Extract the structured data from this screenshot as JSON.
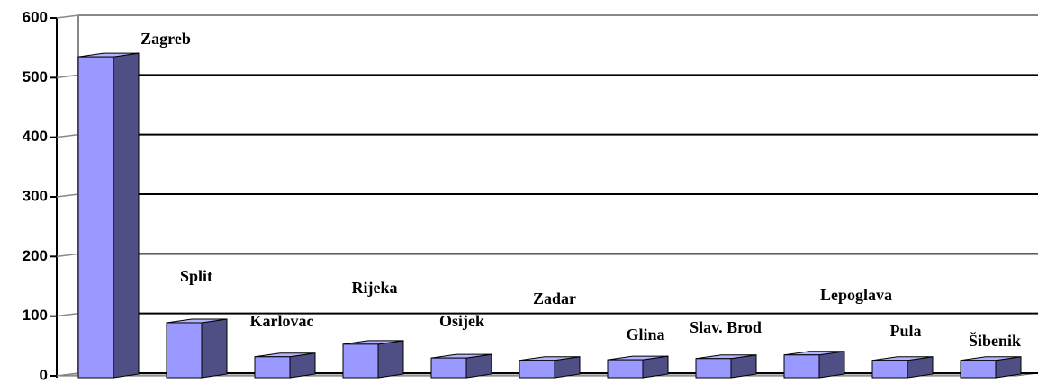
{
  "chart_data": {
    "type": "bar3d",
    "categories": [
      "Zagreb",
      "Split",
      "Karlovac",
      "Rijeka",
      "Osijek",
      "Zadar",
      "Glina",
      "Slav. Brod",
      "Lepoglava",
      "Pula",
      "Šibenik"
    ],
    "values": [
      535,
      89,
      32,
      53,
      30,
      26,
      27,
      29,
      35,
      26,
      26
    ],
    "color": "#9999ff",
    "ylim": [
      0,
      600
    ],
    "yticks": [
      0,
      100,
      200,
      300,
      400,
      500,
      600
    ],
    "grid": true
  }
}
